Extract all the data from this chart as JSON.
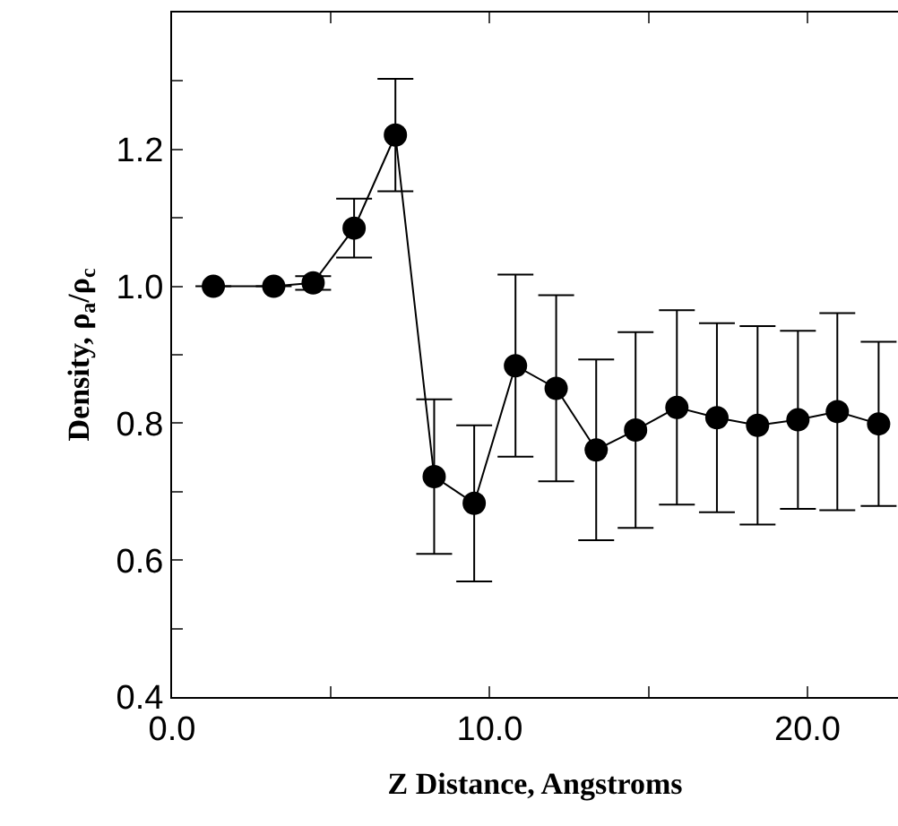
{
  "chart_data": {
    "type": "line",
    "xlabel": "Z Distance, Angstroms",
    "ylabel": "Density, ρ$_{a}$/ρ$_{c}$",
    "x": [
      1.3,
      3.2,
      4.44,
      5.73,
      7.03,
      8.25,
      9.51,
      10.81,
      12.09,
      13.35,
      14.59,
      15.89,
      17.15,
      18.43,
      19.7,
      20.94,
      22.24
    ],
    "series": [
      {
        "color": "#000000",
        "values": [
          1.0,
          1.0,
          1.005,
          1.085,
          1.221,
          0.722,
          0.683,
          0.884,
          0.851,
          0.761,
          0.79,
          0.823,
          0.808,
          0.797,
          0.805,
          0.817,
          0.799
        ],
        "errors": [
          null,
          null,
          0.01,
          0.043,
          0.082,
          0.113,
          0.114,
          0.133,
          0.136,
          0.132,
          0.143,
          0.142,
          0.138,
          0.145,
          0.13,
          0.144,
          0.12
        ]
      }
    ],
    "xlim": [
      0,
      22.85
    ],
    "xticks": [
      {
        "value": 0,
        "label": "0.0"
      },
      {
        "value": 5,
        "label": null
      },
      {
        "value": 10,
        "label": "10.0"
      },
      {
        "value": 15,
        "label": null
      },
      {
        "value": 20,
        "label": "20.0"
      }
    ],
    "ylim": [
      0.4,
      1.4
    ],
    "yticks": [
      0.4,
      {
        "value": 0.5,
        "label": null
      },
      0.6,
      {
        "value": 0.7,
        "label": null
      },
      0.8,
      {
        "value": 0.9,
        "label": null
      },
      {
        "value": 1.0,
        "label": "1.0"
      },
      {
        "value": 1.1,
        "label": null
      },
      1.2,
      {
        "value": 1.3,
        "label": null
      }
    ],
    "marker": "circle",
    "line_style": "solid"
  }
}
